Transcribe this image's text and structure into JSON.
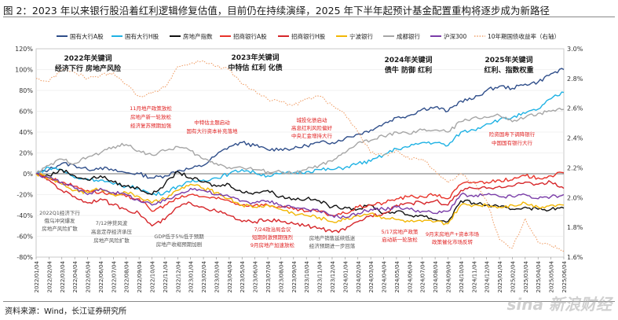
{
  "title": "图 2：2023 年以来银行股沿着红利逻辑修复估值，目前仍在持续演绎，2025 年下半年起预计基金配置重构将逐步成为新路径",
  "source": "资料来源：Wind，长江证券研究所",
  "watermark": "sina 新浪财经",
  "chart_data": {
    "type": "line",
    "x_ticks": [
      "2022/01/04",
      "2022/02/04",
      "2022/03/04",
      "2022/04/04",
      "2022/05/04",
      "2022/06/04",
      "2022/07/04",
      "2022/08/04",
      "2022/09/04",
      "2022/10/04",
      "2022/11/04",
      "2022/12/04",
      "2023/01/04",
      "2023/02/04",
      "2023/03/04",
      "2023/04/04",
      "2023/05/04",
      "2023/06/04",
      "2023/07/04",
      "2023/08/04",
      "2023/09/04",
      "2023/10/04",
      "2023/11/04",
      "2023/12/04",
      "2024/01/04",
      "2024/02/04",
      "2024/03/04",
      "2024/04/04",
      "2024/05/04",
      "2024/06/04",
      "2024/07/04",
      "2024/08/04",
      "2024/09/04",
      "2024/10/04",
      "2024/11/04",
      "2024/12/04",
      "2025/01/04",
      "2025/02/04",
      "2025/03/04",
      "2025/04/04",
      "2025/05/04",
      "2025/06/04"
    ],
    "y_left": {
      "min": -0.8,
      "max": 1.2,
      "ticks": [
        "120%",
        "100%",
        "80%",
        "60%",
        "40%",
        "20%",
        "0%",
        "-20%",
        "-40%",
        "-60%",
        "-80%"
      ]
    },
    "y_right": {
      "min": 1.6,
      "max": 3.0,
      "ticks": [
        "3.0%",
        "2.8%",
        "2.6%",
        "2.4%",
        "2.2%",
        "2.0%",
        "1.8%",
        "1.6%"
      ]
    },
    "legend": [
      "国有大行A股",
      "国有大行H股",
      "房地产指数",
      "招商银行A股",
      "招商银行H股",
      "宁波银行",
      "成都银行",
      "沪深300",
      "10年期国债收益率（右轴）"
    ],
    "colors": {
      "国有大行A股": "#2f4e8a",
      "国有大行H股": "#1fb2e4",
      "房地产指数": "#111111",
      "招商银行A股": "#e8332a",
      "招商银行H股": "#d6262a",
      "宁波银行": "#f2b705",
      "成都银行": "#a6a6a6",
      "沪深300": "#7a3da8",
      "10年期国债收益率（右轴）": "#f0a06a"
    },
    "series": [
      {
        "name": "国有大行A股",
        "axis": "left",
        "values": [
          0.0,
          0.04,
          0.1,
          0.08,
          0.04,
          0.06,
          0.03,
          0.01,
          0.0,
          -0.04,
          -0.02,
          0.03,
          0.05,
          0.08,
          0.18,
          0.26,
          0.3,
          0.27,
          0.23,
          0.24,
          0.24,
          0.27,
          0.3,
          0.3,
          0.34,
          0.38,
          0.42,
          0.48,
          0.54,
          0.56,
          0.62,
          0.64,
          0.6,
          0.7,
          0.72,
          0.8,
          0.84,
          0.82,
          0.86,
          0.88,
          0.96,
          1.0
        ]
      },
      {
        "name": "国有大行H股",
        "axis": "left",
        "values": [
          0.0,
          0.06,
          0.04,
          -0.04,
          -0.05,
          -0.06,
          -0.1,
          -0.12,
          -0.14,
          -0.2,
          -0.18,
          -0.12,
          -0.08,
          -0.06,
          -0.04,
          0.0,
          0.04,
          0.01,
          -0.02,
          0.0,
          0.01,
          0.02,
          0.04,
          0.04,
          0.06,
          0.1,
          0.12,
          0.18,
          0.24,
          0.26,
          0.3,
          0.3,
          0.27,
          0.4,
          0.42,
          0.48,
          0.52,
          0.54,
          0.58,
          0.62,
          0.72,
          0.78
        ]
      },
      {
        "name": "房地产指数",
        "axis": "left",
        "values": [
          0.0,
          -0.02,
          0.04,
          -0.02,
          -0.06,
          -0.02,
          -0.08,
          -0.12,
          -0.14,
          -0.2,
          -0.1,
          0.02,
          -0.04,
          -0.08,
          -0.12,
          -0.1,
          -0.18,
          -0.18,
          -0.16,
          -0.22,
          -0.24,
          -0.24,
          -0.26,
          -0.32,
          -0.32,
          -0.34,
          -0.3,
          -0.38,
          -0.36,
          -0.4,
          -0.4,
          -0.44,
          -0.46,
          -0.26,
          -0.28,
          -0.3,
          -0.32,
          -0.34,
          -0.32,
          -0.34,
          -0.34,
          -0.33
        ]
      },
      {
        "name": "招商银行A股",
        "axis": "left",
        "values": [
          0.0,
          -0.04,
          -0.08,
          -0.12,
          -0.16,
          -0.18,
          -0.2,
          -0.22,
          -0.24,
          -0.36,
          -0.3,
          -0.24,
          -0.2,
          -0.22,
          -0.24,
          -0.26,
          -0.3,
          -0.3,
          -0.3,
          -0.32,
          -0.34,
          -0.36,
          -0.36,
          -0.4,
          -0.38,
          -0.32,
          -0.3,
          -0.28,
          -0.24,
          -0.22,
          -0.22,
          -0.2,
          -0.24,
          -0.1,
          -0.08,
          -0.08,
          -0.06,
          -0.06,
          -0.02,
          -0.04,
          -0.02,
          0.01
        ]
      },
      {
        "name": "招商银行H股",
        "axis": "left",
        "values": [
          0.0,
          -0.06,
          -0.16,
          -0.22,
          -0.28,
          -0.24,
          -0.3,
          -0.34,
          -0.38,
          -0.5,
          -0.44,
          -0.32,
          -0.28,
          -0.32,
          -0.36,
          -0.4,
          -0.46,
          -0.46,
          -0.44,
          -0.46,
          -0.48,
          -0.5,
          -0.52,
          -0.56,
          -0.54,
          -0.46,
          -0.4,
          -0.38,
          -0.3,
          -0.28,
          -0.28,
          -0.26,
          -0.3,
          -0.16,
          -0.14,
          -0.14,
          -0.12,
          -0.12,
          -0.08,
          -0.1,
          -0.08,
          -0.14
        ]
      },
      {
        "name": "宁波银行",
        "axis": "left",
        "values": [
          0.0,
          -0.04,
          -0.1,
          -0.16,
          -0.18,
          -0.14,
          -0.2,
          -0.18,
          -0.22,
          -0.28,
          -0.24,
          -0.16,
          -0.1,
          -0.14,
          -0.18,
          -0.24,
          -0.3,
          -0.32,
          -0.3,
          -0.34,
          -0.38,
          -0.4,
          -0.42,
          -0.46,
          -0.44,
          -0.4,
          -0.38,
          -0.42,
          -0.44,
          -0.46,
          -0.46,
          -0.46,
          -0.48,
          -0.3,
          -0.3,
          -0.3,
          -0.32,
          -0.3,
          -0.28,
          -0.32,
          -0.3,
          -0.3
        ]
      },
      {
        "name": "成都银行",
        "axis": "left",
        "values": [
          0.0,
          0.08,
          0.14,
          0.1,
          0.16,
          0.2,
          0.26,
          0.28,
          0.22,
          0.18,
          0.22,
          0.26,
          0.22,
          0.14,
          0.1,
          0.06,
          0.06,
          0.04,
          0.02,
          0.02,
          0.0,
          0.04,
          0.08,
          0.12,
          0.2,
          0.3,
          0.32,
          0.36,
          0.4,
          0.38,
          0.42,
          0.42,
          0.4,
          0.5,
          0.54,
          0.54,
          0.56,
          0.5,
          0.54,
          0.58,
          0.6,
          0.62
        ]
      },
      {
        "name": "沪深300",
        "axis": "left",
        "values": [
          0.0,
          -0.04,
          -0.08,
          -0.14,
          -0.2,
          -0.14,
          -0.18,
          -0.2,
          -0.26,
          -0.3,
          -0.26,
          -0.2,
          -0.14,
          -0.16,
          -0.2,
          -0.22,
          -0.26,
          -0.28,
          -0.26,
          -0.3,
          -0.32,
          -0.34,
          -0.36,
          -0.4,
          -0.42,
          -0.38,
          -0.34,
          -0.34,
          -0.32,
          -0.34,
          -0.36,
          -0.38,
          -0.36,
          -0.2,
          -0.22,
          -0.2,
          -0.22,
          -0.22,
          -0.2,
          -0.24,
          -0.22,
          -0.2
        ]
      },
      {
        "name": "10年期国债收益率（右轴）",
        "axis": "right",
        "values": [
          2.8,
          2.78,
          2.86,
          2.84,
          2.8,
          2.82,
          2.84,
          2.76,
          2.68,
          2.7,
          2.74,
          2.88,
          2.9,
          2.92,
          2.88,
          2.86,
          2.76,
          2.72,
          2.66,
          2.64,
          2.62,
          2.66,
          2.68,
          2.62,
          2.56,
          2.44,
          2.3,
          2.28,
          2.32,
          2.26,
          2.26,
          2.18,
          2.1,
          2.16,
          2.1,
          1.98,
          1.72,
          1.66,
          1.86,
          1.7,
          1.68,
          1.64
        ]
      }
    ],
    "annotations": [
      {
        "text": "2022年关键词",
        "color": "#1a1a1a",
        "bold": true
      },
      {
        "text": "经济下行 房地产风险",
        "color": "#1a1a1a",
        "bold": true
      },
      {
        "text": "2023年关键词",
        "color": "#1a1a1a",
        "bold": true
      },
      {
        "text": "中特估 红利 化债",
        "color": "#1a1a1a",
        "bold": true
      },
      {
        "text": "2024年关键词",
        "color": "#1a1a1a",
        "bold": true
      },
      {
        "text": "债牛 防御 红利",
        "color": "#1a1a1a",
        "bold": true
      },
      {
        "text": "2025年关键词",
        "color": "#1a1a1a",
        "bold": true
      },
      {
        "text": "红利、指数权重",
        "color": "#1a1a1a",
        "bold": true
      },
      {
        "text": "11月地产政策放松",
        "color": "#e02020",
        "bold": false
      },
      {
        "text": "房地产新一轮放松",
        "color": "#e02020",
        "bold": false
      },
      {
        "text": "经济复苏预期加强",
        "color": "#e02020",
        "bold": false
      },
      {
        "text": "中特估主题启动",
        "color": "#e02020",
        "bold": false
      },
      {
        "text": "国有大行资本补充落地",
        "color": "#e02020",
        "bold": false
      },
      {
        "text": "城投化债启动",
        "color": "#e02020",
        "bold": false
      },
      {
        "text": "高息红利风险偏好",
        "color": "#e02020",
        "bold": false
      },
      {
        "text": "中央汇金增持大行",
        "color": "#e02020",
        "bold": false
      },
      {
        "text": "险资国寿下调降银行",
        "color": "#e02020",
        "bold": false
      },
      {
        "text": "中国国有银行大行",
        "color": "#e02020",
        "bold": false
      },
      {
        "text": "2022Q1经济下行",
        "color": "#555555",
        "bold": false
      },
      {
        "text": "俄乌冲突爆发",
        "color": "#555555",
        "bold": false
      },
      {
        "text": "房地产风险扩散",
        "color": "#555555",
        "bold": false
      },
      {
        "text": "7/12停贷风波",
        "color": "#555555",
        "bold": false
      },
      {
        "text": "高息定存经济承压",
        "color": "#555555",
        "bold": false
      },
      {
        "text": "房地产风险扩散",
        "color": "#555555",
        "bold": false
      },
      {
        "text": "GDP低于5%低于预期",
        "color": "#555555",
        "bold": false
      },
      {
        "text": "房地产收缩预期加剧",
        "color": "#555555",
        "bold": false
      },
      {
        "text": "7/24政治局会议",
        "color": "#e02020",
        "bold": false
      },
      {
        "text": "短期刺激预期强烈",
        "color": "#e02020",
        "bold": false
      },
      {
        "text": "9月房地产加速放松",
        "color": "#e02020",
        "bold": false
      },
      {
        "text": "房地产销售延续低迷",
        "color": "#555555",
        "bold": false
      },
      {
        "text": "经济预期进一步回落",
        "color": "#555555",
        "bold": false
      },
      {
        "text": "5/17房地产政策",
        "color": "#e02020",
        "bold": false
      },
      {
        "text": "启动新一轮放松",
        "color": "#e02020",
        "bold": false
      },
      {
        "text": "9月末房地产+资本市场",
        "color": "#e02020",
        "bold": false
      },
      {
        "text": "政策催化市场反转",
        "color": "#e02020",
        "bold": false
      }
    ]
  }
}
